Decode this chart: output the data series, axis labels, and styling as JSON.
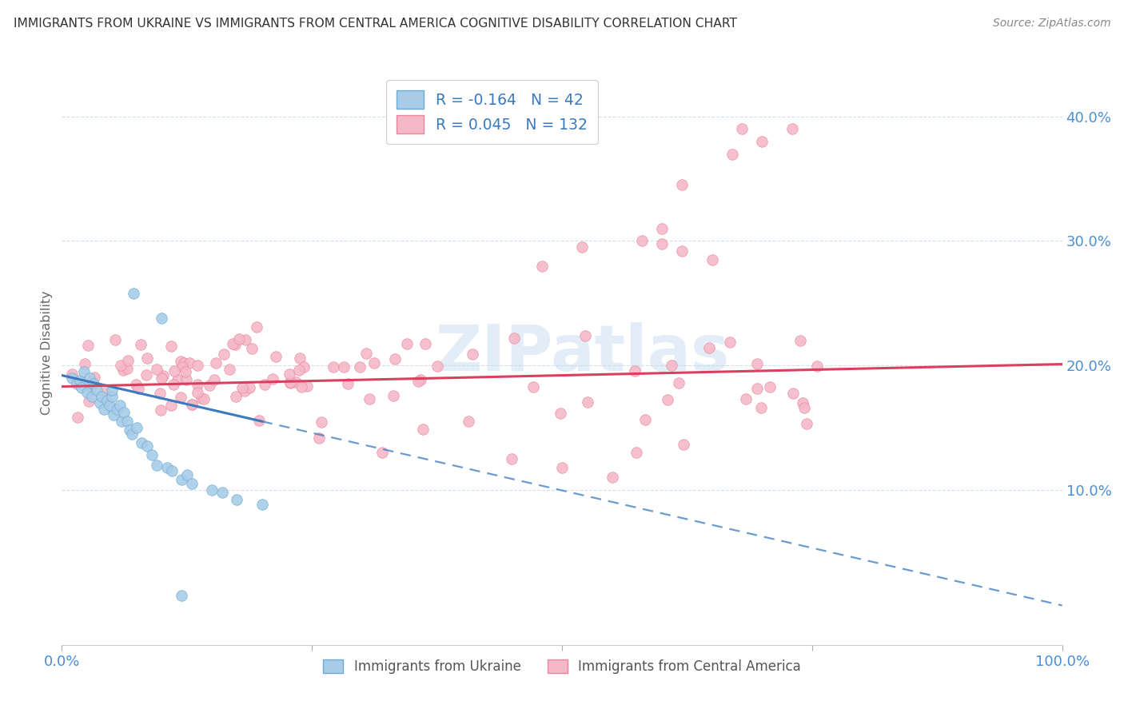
{
  "title": "IMMIGRANTS FROM UKRAINE VS IMMIGRANTS FROM CENTRAL AMERICA COGNITIVE DISABILITY CORRELATION CHART",
  "source": "Source: ZipAtlas.com",
  "ylabel": "Cognitive Disability",
  "xlim": [
    0.0,
    1.0
  ],
  "ylim": [
    -0.025,
    0.445
  ],
  "ukraine_R": -0.164,
  "ukraine_N": 42,
  "central_R": 0.045,
  "central_N": 132,
  "ukraine_color": "#a8cce8",
  "ukraine_edge_color": "#6aaad4",
  "central_color": "#f5b8c8",
  "central_edge_color": "#e8889a",
  "ukraine_trend_color": "#3a7abf",
  "central_trend_color": "#d94060",
  "watermark": "ZIPatlas",
  "legend_label_ukraine": "Immigrants from Ukraine",
  "legend_label_central": "Immigrants from Central America",
  "grid_color": "#c8d8e8",
  "yticks": [
    0.1,
    0.2,
    0.3,
    0.4
  ],
  "ytick_labels": [
    "10.0%",
    "20.0%",
    "30.0%",
    "40.0%"
  ],
  "xtick_positions": [
    0.0,
    0.25,
    0.5,
    0.75,
    1.0
  ],
  "xtick_labels": [
    "0.0%",
    "",
    "",
    "",
    "100.0%"
  ]
}
